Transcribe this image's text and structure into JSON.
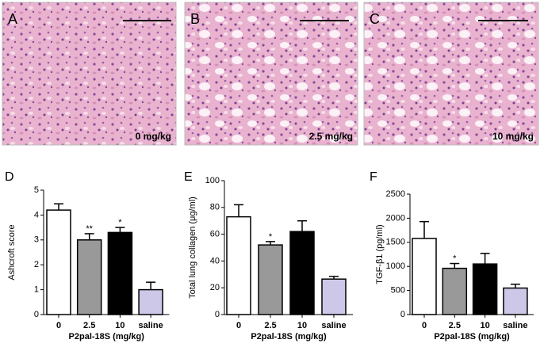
{
  "images": [
    {
      "letter": "A",
      "label": "0 mg/kg"
    },
    {
      "letter": "B",
      "label": "2.5 mg/kg"
    },
    {
      "letter": "C",
      "label": "10 mg/kg"
    }
  ],
  "chart_data": [
    {
      "type": "bar",
      "panel_label": "D",
      "y_label": "Ashcroft score",
      "x_label": "P2pal-18S (mg/kg)",
      "categories": [
        "0",
        "2.5",
        "10",
        "saline"
      ],
      "values": [
        4.2,
        3.0,
        3.3,
        1.0
      ],
      "errors": [
        0.25,
        0.25,
        0.2,
        0.3
      ],
      "significance": [
        null,
        "**",
        "*",
        null
      ],
      "colors": [
        "#ffffff",
        "#999999",
        "#000000",
        "#cdc8e8"
      ],
      "ylim": [
        0,
        5
      ],
      "yticks": [
        0,
        1,
        2,
        3,
        4,
        5
      ]
    },
    {
      "type": "bar",
      "panel_label": "E",
      "y_label": "Total lung collagen (μg/ml)",
      "x_label": "P2pal-18S (mg/kg)",
      "categories": [
        "0",
        "2.5",
        "10",
        "saline"
      ],
      "values": [
        73,
        52,
        62,
        26.5
      ],
      "errors": [
        9,
        2.5,
        8,
        2
      ],
      "significance": [
        null,
        "*",
        null,
        null
      ],
      "colors": [
        "#ffffff",
        "#999999",
        "#000000",
        "#cdc8e8"
      ],
      "ylim": [
        0,
        100
      ],
      "yticks": [
        0,
        20,
        40,
        60,
        80,
        100
      ]
    },
    {
      "type": "bar",
      "panel_label": "F",
      "y_label": "TGF-β1 (pg/ml)",
      "x_label": "P2pal-18S (mg/kg)",
      "categories": [
        "0",
        "2.5",
        "10",
        "saline"
      ],
      "values": [
        1580,
        960,
        1050,
        550
      ],
      "errors": [
        350,
        100,
        220,
        80
      ],
      "significance": [
        null,
        "*",
        null,
        null
      ],
      "colors": [
        "#ffffff",
        "#999999",
        "#000000",
        "#cdc8e8"
      ],
      "ylim": [
        0,
        2500
      ],
      "yticks": [
        0,
        500,
        1000,
        1500,
        2000,
        2500
      ]
    }
  ]
}
